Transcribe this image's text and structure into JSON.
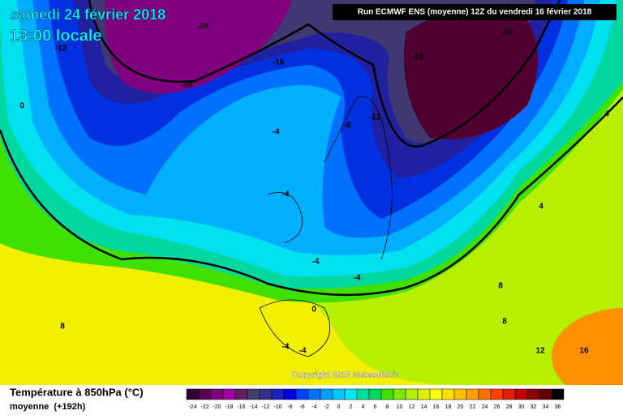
{
  "header": {
    "title": "samedi 24 février 2018",
    "time": "13:00 locale",
    "run": "Run ECMWF ENS (moyenne) 12Z du vendredi 16 février 2018"
  },
  "map": {
    "contour_labels": [
      -24,
      -20,
      -12,
      -16,
      -16,
      -20,
      0,
      -4,
      -8,
      -12,
      4,
      -4,
      4,
      -4,
      -4,
      8,
      0,
      8,
      8,
      -4,
      -4,
      12,
      16
    ]
  },
  "copyright": "Copyright 2018 Meteociel.fr",
  "legend": {
    "title": "Température à 850hPa (°C)",
    "subtitle": "moyenne  (+192h)",
    "scale": [
      -24,
      -22,
      -20,
      -18,
      -16,
      -14,
      -12,
      -10,
      -8,
      -6,
      -4,
      -2,
      0,
      2,
      4,
      6,
      8,
      10,
      12,
      14,
      16,
      18,
      20,
      22,
      24,
      26,
      28,
      30,
      32,
      34,
      36
    ],
    "colors": [
      "#300030",
      "#580058",
      "#800080",
      "#a000a0",
      "#602060",
      "#404070",
      "#303090",
      "#2020c0",
      "#0000e0",
      "#0040ff",
      "#0070ff",
      "#00a0ff",
      "#00c8ff",
      "#00e8f0",
      "#00e0a0",
      "#00d860",
      "#40e000",
      "#80e800",
      "#b0f000",
      "#e0f000",
      "#ffff00",
      "#ffe000",
      "#ffc000",
      "#ffa000",
      "#ff7000",
      "#ff4000",
      "#e02000",
      "#c00000",
      "#900000",
      "#600000",
      "#000000"
    ]
  }
}
